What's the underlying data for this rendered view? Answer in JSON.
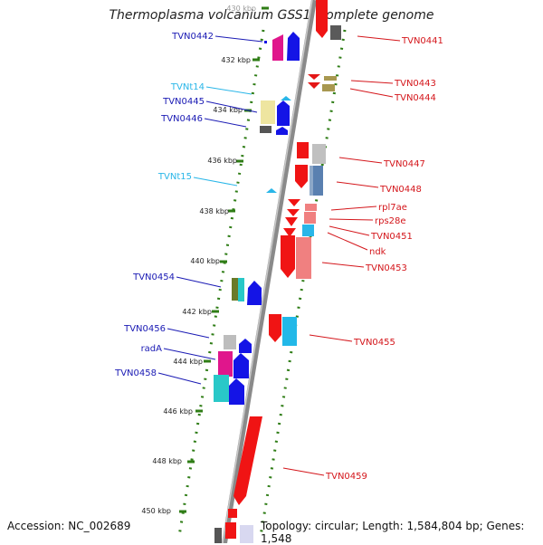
{
  "title": "Thermoplasma volcanium GSS1, complete genome",
  "footer": {
    "accession": "Accession: NC_002689",
    "summary": "Topology: circular; Length: 1,584,804 bp; Genes: 1,548"
  },
  "colors": {
    "forward_label": "#1a1ab4",
    "rna_label": "#29b6e8",
    "reverse_label": "#d4161b",
    "backbone": "#8a8a8a",
    "dots": "#2f7d16"
  },
  "ticks": [
    "430 kbp",
    "432 kbp",
    "434 kbp",
    "436 kbp",
    "438 kbp",
    "440 kbp",
    "442 kbp",
    "444 kbp",
    "446 kbp",
    "448 kbp",
    "450 kbp"
  ],
  "left_labels": [
    {
      "text": "TVN0442",
      "kind": "forward"
    },
    {
      "text": "TVNt14",
      "kind": "rna"
    },
    {
      "text": "TVN0445",
      "kind": "forward"
    },
    {
      "text": "TVN0446",
      "kind": "forward"
    },
    {
      "text": "TVNt15",
      "kind": "rna"
    },
    {
      "text": "TVN0454",
      "kind": "forward"
    },
    {
      "text": "TVN0456",
      "kind": "forward"
    },
    {
      "text": "radA",
      "kind": "forward"
    },
    {
      "text": "TVN0458",
      "kind": "forward"
    }
  ],
  "right_labels": [
    {
      "text": "TVN0441"
    },
    {
      "text": "TVN0443"
    },
    {
      "text": "TVN0444"
    },
    {
      "text": "TVN0447"
    },
    {
      "text": "TVN0448"
    },
    {
      "text": "rpl7ae"
    },
    {
      "text": "rps28e"
    },
    {
      "text": "TVN0451"
    },
    {
      "text": "ndk"
    },
    {
      "text": "TVN0453"
    },
    {
      "text": "TVN0455"
    },
    {
      "text": "TVN0459"
    }
  ]
}
